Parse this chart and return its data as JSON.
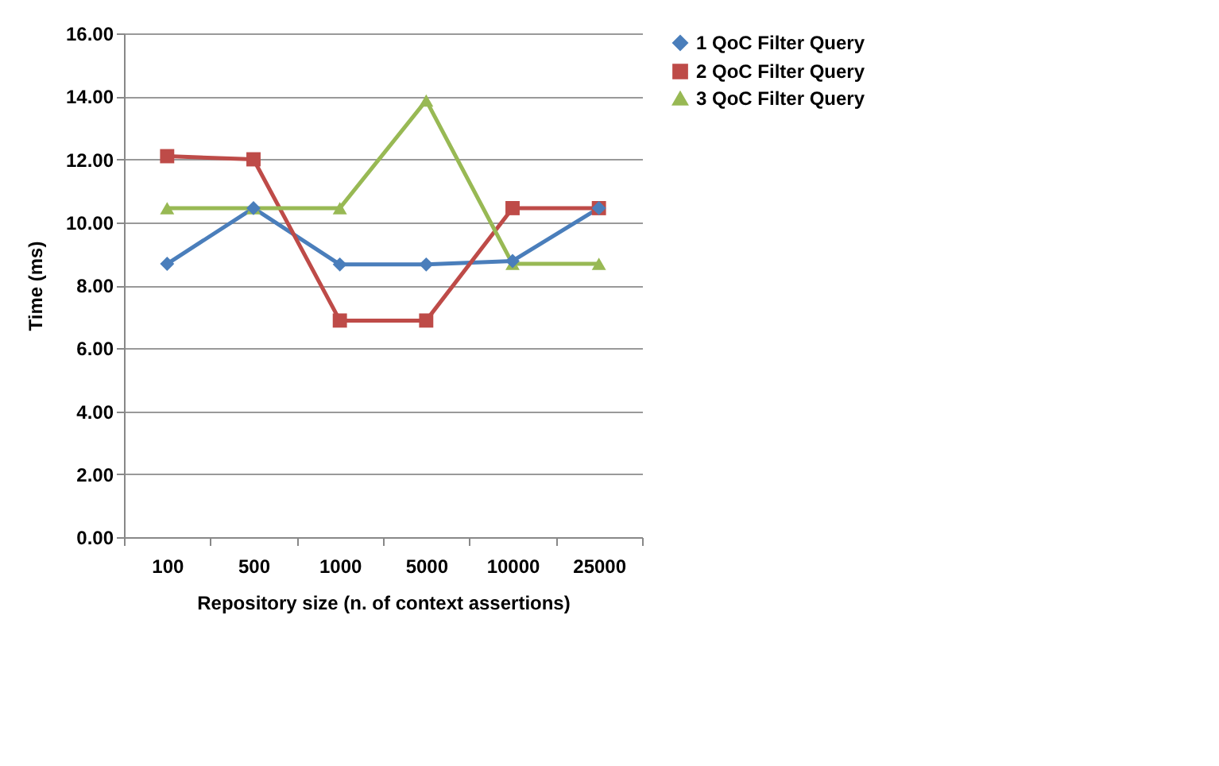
{
  "chart_data": {
    "type": "line",
    "xlabel": "Repository size (n. of context assertions)",
    "ylabel": "Time (ms)",
    "categories": [
      "100",
      "500",
      "1000",
      "5000",
      "10000",
      "25000"
    ],
    "series": [
      {
        "name": "1 QoC Filter Query",
        "color": "#4a7ebb",
        "marker": "diamond",
        "values": [
          8.68,
          10.45,
          8.66,
          8.66,
          8.77,
          10.45
        ]
      },
      {
        "name": "2 QoC Filter Query",
        "color": "#be4b48",
        "marker": "square",
        "values": [
          12.1,
          12.0,
          6.88,
          6.88,
          10.45,
          10.45
        ]
      },
      {
        "name": "3 QoC Filter Query",
        "color": "#98b954",
        "marker": "triangle",
        "values": [
          10.45,
          10.45,
          10.45,
          13.87,
          8.68,
          8.68
        ]
      }
    ],
    "ylim": [
      0,
      16
    ],
    "yticks": [
      {
        "value": 0,
        "label": "0.00"
      },
      {
        "value": 2,
        "label": "2.00"
      },
      {
        "value": 4,
        "label": "4.00"
      },
      {
        "value": 6,
        "label": "6.00"
      },
      {
        "value": 8,
        "label": "8.00"
      },
      {
        "value": 10,
        "label": "10.00"
      },
      {
        "value": 12,
        "label": "12.00"
      },
      {
        "value": 14,
        "label": "14.00"
      },
      {
        "value": 16,
        "label": "16.00"
      }
    ],
    "grid": "y",
    "legend": "right",
    "line_style": "solid"
  }
}
